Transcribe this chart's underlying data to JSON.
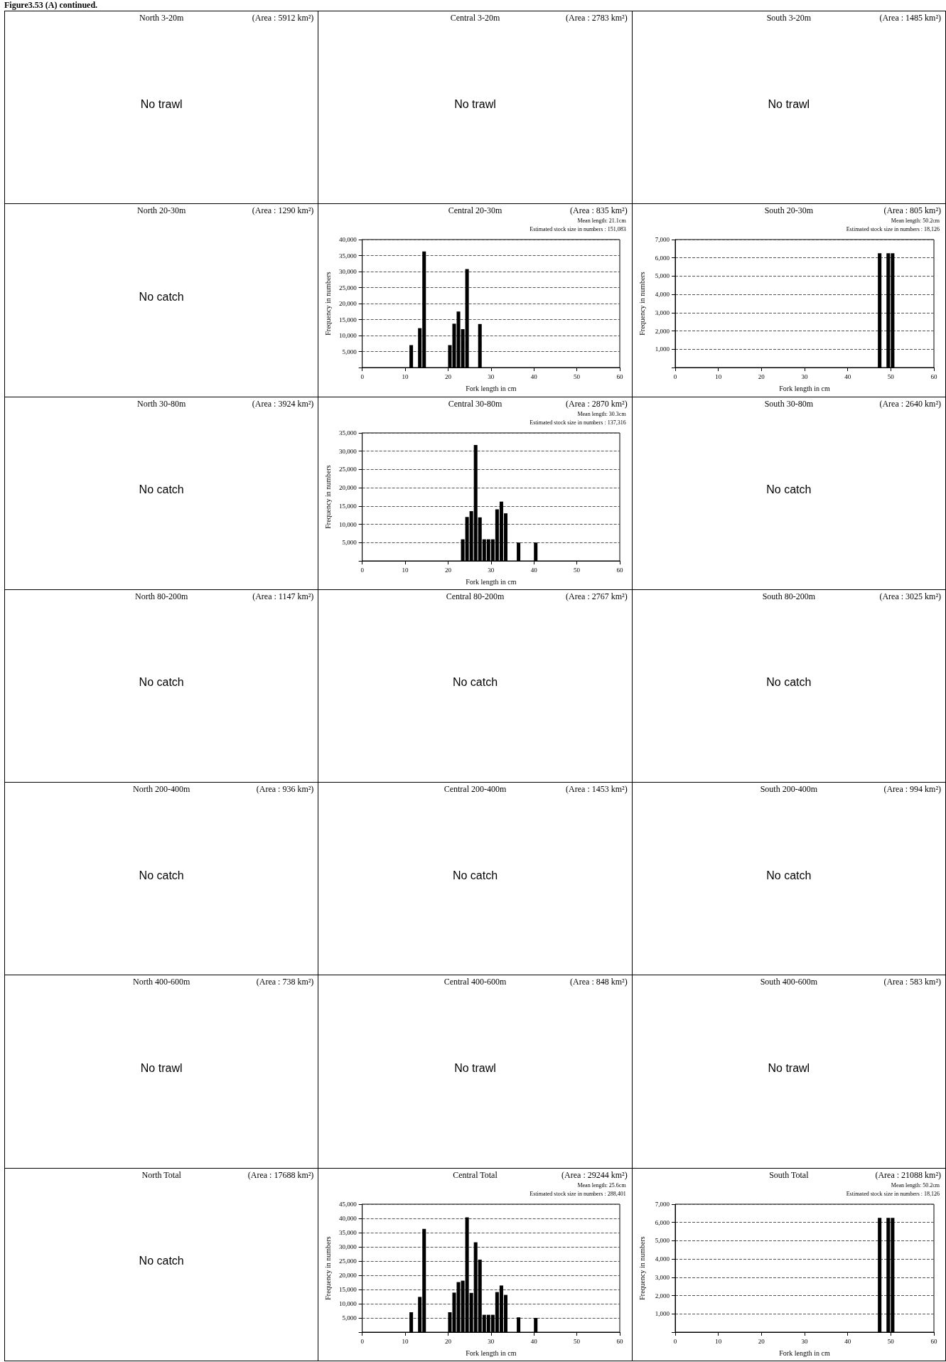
{
  "chart_data": [
    {
      "type": "other",
      "title": "Figure3.53 (A) continued."
    },
    {
      "type": "other",
      "title": "North 3-20m",
      "subtitle": "(Area : 5912 km²)",
      "annotations": [
        "No trawl"
      ]
    },
    {
      "type": "other",
      "title": "Central 3-20m",
      "subtitle": "(Area : 2783 km²)",
      "annotations": [
        "No trawl"
      ]
    },
    {
      "type": "other",
      "title": "South 3-20m",
      "subtitle": "(Area : 1485 km²)",
      "annotations": [
        "No trawl"
      ]
    },
    {
      "type": "other",
      "title": "North 20-30m",
      "subtitle": "(Area : 1290 km²)",
      "annotations": [
        "No catch"
      ]
    },
    {
      "type": "histogram",
      "title": "Central 20-30m",
      "subtitle": "(Area : 835 km²)",
      "annotations": [
        "Mean length: 21.1cm",
        "Estimated stock size in numbers : 151,083"
      ],
      "xlabel": "Fork length in cm",
      "ylabel": "Frequency in numbers",
      "color": "#000000",
      "grid": "y",
      "bins": [
        11,
        12,
        13,
        14,
        15,
        16,
        17,
        18,
        19,
        20,
        21,
        22,
        23,
        24,
        25,
        26,
        27,
        28
      ],
      "values": [
        7000,
        0,
        12300,
        36300,
        0,
        0,
        0,
        0,
        0,
        7000,
        13700,
        17500,
        12000,
        30800,
        0,
        0,
        13600
      ],
      "xlim": [
        0,
        60
      ],
      "xticks": [
        0,
        10,
        20,
        30,
        40,
        50,
        60
      ],
      "ylim": [
        0,
        40000
      ],
      "yticks": [
        {
          "value": 0,
          "label": null
        },
        {
          "value": 5000,
          "label": "5,000"
        },
        {
          "value": 10000,
          "label": "10,000"
        },
        {
          "value": 15000,
          "label": "15,000"
        },
        {
          "value": 20000,
          "label": "20,000"
        },
        {
          "value": 25000,
          "label": "25,000"
        },
        {
          "value": 30000,
          "label": "30,000"
        },
        {
          "value": 35000,
          "label": "35,000"
        },
        {
          "value": 40000,
          "label": "40,000"
        }
      ]
    },
    {
      "type": "histogram",
      "title": "South 20-30m",
      "subtitle": "(Area : 805 km²)",
      "annotations": [
        "Mean length: 50.2cm",
        "Estimated stock size in numbers : 18,126"
      ],
      "xlabel": "Fork length in cm",
      "ylabel": "Frequency in numbers",
      "color": "#000000",
      "grid": "y",
      "bins": [
        47,
        48,
        49,
        50,
        51
      ],
      "values": [
        6250,
        0,
        6250,
        6250
      ],
      "xlim": [
        0,
        60
      ],
      "xticks": [
        0,
        10,
        20,
        30,
        40,
        50,
        60
      ],
      "ylim": [
        0,
        7000
      ],
      "yticks": [
        {
          "value": 0,
          "label": null
        },
        {
          "value": 1000,
          "label": "1,000"
        },
        {
          "value": 2000,
          "label": "2,000"
        },
        {
          "value": 3000,
          "label": "3,000"
        },
        {
          "value": 4000,
          "label": "4,000"
        },
        {
          "value": 5000,
          "label": "5,000"
        },
        {
          "value": 6000,
          "label": "6,000"
        },
        {
          "value": 7000,
          "label": "7,000"
        }
      ]
    },
    {
      "type": "other",
      "title": "North 30-80m",
      "subtitle": "(Area : 3924 km²)",
      "annotations": [
        "No catch"
      ]
    },
    {
      "type": "histogram",
      "title": "Central 30-80m",
      "subtitle": "(Area : 2870 km²)",
      "annotations": [
        "Mean length: 30.3cm",
        "Estimated stock size in numbers : 137,316"
      ],
      "xlabel": "Fork length in cm",
      "ylabel": "Frequency in numbers",
      "color": "#000000",
      "grid": "y",
      "bins": [
        23,
        24,
        25,
        26,
        27,
        28,
        29,
        30,
        31,
        32,
        33,
        34,
        35,
        36,
        37,
        38,
        39,
        40,
        41
      ],
      "values": [
        5900,
        12000,
        13600,
        31700,
        11900,
        5900,
        5900,
        5900,
        14100,
        16200,
        13000,
        0,
        0,
        5000,
        0,
        0,
        0,
        5000
      ],
      "xlim": [
        0,
        60
      ],
      "xticks": [
        0,
        10,
        20,
        30,
        40,
        50,
        60
      ],
      "ylim": [
        0,
        35000
      ],
      "yticks": [
        {
          "value": 0,
          "label": null
        },
        {
          "value": 5000,
          "label": "5,000"
        },
        {
          "value": 10000,
          "label": "10,000"
        },
        {
          "value": 15000,
          "label": "15,000"
        },
        {
          "value": 20000,
          "label": "20,000"
        },
        {
          "value": 25000,
          "label": "25,000"
        },
        {
          "value": 30000,
          "label": "30,000"
        },
        {
          "value": 35000,
          "label": "35,000"
        }
      ]
    },
    {
      "type": "other",
      "title": "South 30-80m",
      "subtitle": "(Area : 2640 km²)",
      "annotations": [
        "No catch"
      ]
    },
    {
      "type": "other",
      "title": "North 80-200m",
      "subtitle": "(Area : 1147 km²)",
      "annotations": [
        "No catch"
      ]
    },
    {
      "type": "other",
      "title": "Central 80-200m",
      "subtitle": "(Area : 2767 km²)",
      "annotations": [
        "No catch"
      ]
    },
    {
      "type": "other",
      "title": "South 80-200m",
      "subtitle": "(Area : 3025 km²)",
      "annotations": [
        "No catch"
      ]
    },
    {
      "type": "other",
      "title": "North 200-400m",
      "subtitle": "(Area : 936 km²)",
      "annotations": [
        "No catch"
      ]
    },
    {
      "type": "other",
      "title": "Central 200-400m",
      "subtitle": "(Area : 1453 km²)",
      "annotations": [
        "No catch"
      ]
    },
    {
      "type": "other",
      "title": "South 200-400m",
      "subtitle": "(Area : 994 km²)",
      "annotations": [
        "No catch"
      ]
    },
    {
      "type": "other",
      "title": "North 400-600m",
      "subtitle": "(Area : 738 km²)",
      "annotations": [
        "No trawl"
      ]
    },
    {
      "type": "other",
      "title": "Central 400-600m",
      "subtitle": "(Area : 848 km²)",
      "annotations": [
        "No trawl"
      ]
    },
    {
      "type": "other",
      "title": "South 400-600m",
      "subtitle": "(Area : 583 km²)",
      "annotations": [
        "No trawl"
      ]
    },
    {
      "type": "other",
      "title": "North Total",
      "subtitle": "(Area : 17688 km²)",
      "annotations": [
        "No catch"
      ]
    },
    {
      "type": "histogram",
      "title": "Central Total",
      "subtitle": "(Area : 29244 km²)",
      "annotations": [
        "Mean length: 25.6cm",
        "Estimated stock size in numbers : 288,401"
      ],
      "xlabel": "Fork length in cm",
      "ylabel": "Frequency in numbers",
      "color": "#000000",
      "grid": "y",
      "bins": [
        11,
        12,
        13,
        14,
        15,
        16,
        17,
        18,
        19,
        20,
        21,
        22,
        23,
        24,
        25,
        26,
        27,
        28,
        29,
        30,
        31,
        32,
        33,
        34,
        35,
        36,
        37,
        38,
        39,
        40,
        41
      ],
      "values": [
        7000,
        0,
        12400,
        36300,
        0,
        0,
        0,
        0,
        0,
        7000,
        13900,
        17600,
        18100,
        40400,
        13800,
        31600,
        25500,
        6100,
        6100,
        6100,
        14100,
        16400,
        13100,
        0,
        0,
        5200,
        0,
        0,
        0,
        5000
      ],
      "xlim": [
        0,
        60
      ],
      "xticks": [
        0,
        10,
        20,
        30,
        40,
        50,
        60
      ],
      "ylim": [
        0,
        45000
      ],
      "yticks": [
        {
          "value": 0,
          "label": null
        },
        {
          "value": 5000,
          "label": "5,000"
        },
        {
          "value": 10000,
          "label": "10,000"
        },
        {
          "value": 15000,
          "label": "15,000"
        },
        {
          "value": 20000,
          "label": "20,000"
        },
        {
          "value": 25000,
          "label": "25,000"
        },
        {
          "value": 30000,
          "label": "30,000"
        },
        {
          "value": 35000,
          "label": "35,000"
        },
        {
          "value": 40000,
          "label": "40,000"
        },
        {
          "value": 45000,
          "label": "45,000"
        }
      ]
    },
    {
      "type": "histogram",
      "title": "South Total",
      "subtitle": "(Area : 21088 km²)",
      "annotations": [
        "Mean length: 50.2cm",
        "Estimated stock size in numbers : 18,126"
      ],
      "xlabel": "Fork length in cm",
      "ylabel": "Frequency in numbers",
      "color": "#000000",
      "grid": "y",
      "bins": [
        47,
        48,
        49,
        50,
        51
      ],
      "values": [
        6250,
        0,
        6250,
        6250
      ],
      "xlim": [
        0,
        60
      ],
      "xticks": [
        0,
        10,
        20,
        30,
        40,
        50,
        60
      ],
      "ylim": [
        0,
        7000
      ],
      "yticks": [
        {
          "value": 0,
          "label": null
        },
        {
          "value": 1000,
          "label": "1,000"
        },
        {
          "value": 2000,
          "label": "2,000"
        },
        {
          "value": 3000,
          "label": "3,000"
        },
        {
          "value": 4000,
          "label": "4,000"
        },
        {
          "value": 5000,
          "label": "5,000"
        },
        {
          "value": 6000,
          "label": "6,000"
        },
        {
          "value": 7000,
          "label": "7,000"
        }
      ]
    }
  ]
}
